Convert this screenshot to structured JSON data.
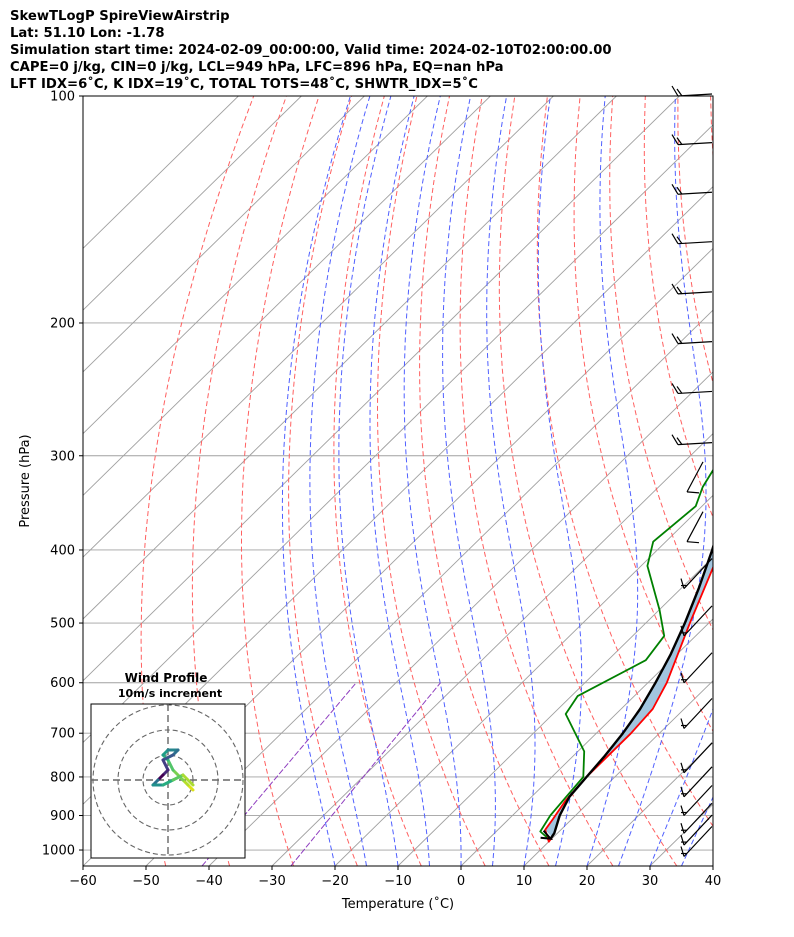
{
  "header": {
    "title": "SkewTLogP SpireViewAirstrip",
    "location": "Lat: 51.10   Lon: -1.78",
    "times": "Simulation start time: 2024-02-09_00:00:00, Valid time: 2024-02-10T02:00:00.00",
    "indices1": "CAPE=0 j/kg, CIN=0 j/kg, LCL=949 hPa, LFC=896 hPa, EQ=nan hPa",
    "indices2": "LFT IDX=6˚C, K IDX=19˚C, TOTAL TOTS=48˚C, SHWTR_IDX=5˚C"
  },
  "chart_data": {
    "type": "line",
    "title": "SkewTLogP SpireViewAirstrip",
    "xlabel": "Temperature (˚C)",
    "ylabel": "Pressure (hPa)",
    "xlim": [
      -60,
      40
    ],
    "ylim": [
      1050,
      100
    ],
    "y_scale": "log",
    "skew": true,
    "grid": true,
    "x_ticks": [
      -60,
      -50,
      -40,
      -30,
      -20,
      -10,
      0,
      10,
      20,
      30,
      40
    ],
    "x_tick_labels": [
      "−60",
      "−50",
      "−40",
      "−30",
      "−20",
      "−10",
      "0",
      "10",
      "20",
      "30",
      "40"
    ],
    "y_ticks": [
      1000,
      900,
      800,
      700,
      600,
      500,
      400,
      300,
      200,
      100
    ],
    "y_tick_labels": [
      "1000",
      "900",
      "800",
      "700",
      "600",
      "500",
      "400",
      "300",
      "200",
      "100"
    ],
    "colors": {
      "temperature": "#ff0000",
      "dewpoint": "#008000",
      "parcel": "#000000",
      "shade": "#a2c5df",
      "dry_adiabat": "#ff6060",
      "moist_adiabat": "#5060ff",
      "mixing_ratio": "#9040c0",
      "isotherm": "#a0a0a0"
    },
    "series": [
      {
        "key": "temperature",
        "p": [
          962,
          975,
          940,
          910,
          860,
          800,
          700,
          650,
          600,
          500,
          400,
          330,
          290,
          270,
          255,
          240,
          210,
          180,
          160,
          140,
          120,
          110,
          100
        ],
        "values": [
          9.8,
          10,
          7.5,
          7,
          6,
          5.5,
          5.5,
          5,
          3,
          -3,
          -10,
          -18,
          -24,
          -23,
          -21,
          -18,
          -12,
          -8,
          -5.5,
          -3,
          -1,
          0,
          1
        ]
      },
      {
        "key": "dewpoint",
        "p": [
          962,
          945,
          900,
          850,
          800,
          740,
          660,
          625,
          560,
          520,
          480,
          420,
          390,
          350,
          330,
          300,
          280,
          260,
          240,
          220,
          210,
          200,
          180,
          170,
          160,
          150,
          130,
          110,
          100
        ],
        "values": [
          9,
          7,
          6,
          5.5,
          5,
          1,
          -8,
          -9,
          -4,
          -5,
          -10,
          -19,
          -22,
          -21,
          -23,
          -25,
          -26,
          -26,
          -25,
          -24,
          -24,
          -25,
          -27,
          -24,
          -21,
          -19,
          -15,
          -11,
          -9
        ]
      },
      {
        "key": "parcel",
        "p": [
          966,
          950,
          900,
          850,
          800,
          750,
          700,
          650,
          600,
          550,
          500,
          450,
          400,
          350,
          300,
          250,
          200,
          150,
          100
        ],
        "values": [
          9.8,
          9.5,
          7.5,
          6,
          5.5,
          5.0,
          4.2,
          3.0,
          1.2,
          -1.0,
          -3.8,
          -7.2,
          -11.3,
          -16.3,
          -22.3,
          -29.6,
          -38.5,
          -49.6,
          -64
        ]
      }
    ],
    "wind_barbs": [
      {
        "p": 100,
        "shown": "10 kt"
      },
      {
        "p": 116,
        "shown": "10 kt"
      },
      {
        "p": 135,
        "shown": "10 kt"
      },
      {
        "p": 157,
        "shown": "10 kt"
      },
      {
        "p": 183,
        "shown": "10 kt"
      },
      {
        "p": 213,
        "shown": "10 kt"
      },
      {
        "p": 248,
        "shown": "10 kt"
      },
      {
        "p": 290,
        "shown": "10 kt"
      },
      {
        "p": 335,
        "shown": "5 kt"
      },
      {
        "p": 390,
        "shown": "5 kt"
      },
      {
        "p": 450,
        "shown": "10 kt"
      },
      {
        "p": 520,
        "shown": "10 kt"
      },
      {
        "p": 600,
        "shown": "10 kt"
      },
      {
        "p": 690,
        "shown": "10 kt"
      },
      {
        "p": 790,
        "shown": "10 kt"
      },
      {
        "p": 850,
        "shown": "10 kt"
      },
      {
        "p": 900,
        "shown": "10 kt"
      },
      {
        "p": 950,
        "shown": "10 kt"
      },
      {
        "p": 985,
        "shown": "10 kt"
      },
      {
        "p": 1020,
        "shown": "10 kt"
      }
    ]
  },
  "inset": {
    "title": "Wind Profile",
    "subtitle": "10m/s increment",
    "hodograph_points": [
      [
        5,
        -2
      ],
      [
        4,
        -1
      ],
      [
        3,
        0
      ],
      [
        1,
        2
      ],
      [
        0,
        4
      ],
      [
        -1,
        5
      ],
      [
        0,
        6
      ],
      [
        2,
        6
      ],
      [
        1,
        5
      ],
      [
        -1,
        4
      ],
      [
        0,
        2
      ],
      [
        -1,
        1
      ],
      [
        -2,
        0
      ],
      [
        -3,
        -1
      ],
      [
        -1,
        -1
      ],
      [
        1,
        0
      ],
      [
        3,
        1
      ],
      [
        5,
        -1
      ]
    ],
    "hodograph_colors": [
      "#dde318",
      "#b5de2b",
      "#7ad151",
      "#52c569",
      "#2fb47c",
      "#1f9e89",
      "#25858e",
      "#2d708e",
      "#38588c",
      "#433e85",
      "#482878",
      "#440154",
      "#2c728e",
      "#21918c",
      "#27ad81",
      "#5ec962",
      "#aadc32",
      "#fde725"
    ]
  }
}
